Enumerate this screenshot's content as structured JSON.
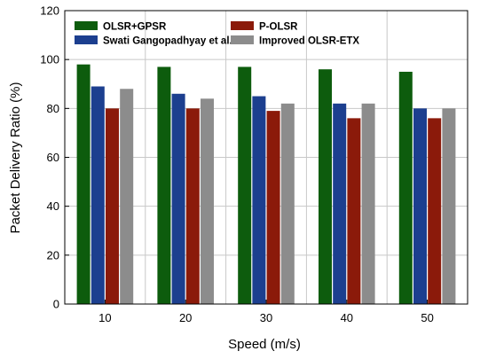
{
  "chart_data": {
    "type": "bar",
    "title": "",
    "xlabel": "Speed (m/s)",
    "ylabel": "Packet Delivery Ratio (%)",
    "categories": [
      "10",
      "20",
      "30",
      "40",
      "50"
    ],
    "ylim": [
      0,
      120
    ],
    "yticks": [
      "0",
      "20",
      "40",
      "60",
      "80",
      "100",
      "120"
    ],
    "grid": true,
    "legend_position": "top",
    "series": [
      {
        "name": "OLSR+GPSR",
        "color": "#0d5c0d",
        "values": [
          98,
          97,
          97,
          96,
          95
        ]
      },
      {
        "name": "Swati Gangopadhyay et al.",
        "color": "#1c3f8f",
        "values": [
          89,
          86,
          85,
          82,
          80
        ]
      },
      {
        "name": "P-OLSR",
        "color": "#8b1a0a",
        "values": [
          80,
          80,
          79,
          76,
          76
        ]
      },
      {
        "name": "Improved OLSR-ETX",
        "color": "#8c8c8c",
        "values": [
          88,
          84,
          82,
          82,
          80
        ]
      }
    ]
  }
}
